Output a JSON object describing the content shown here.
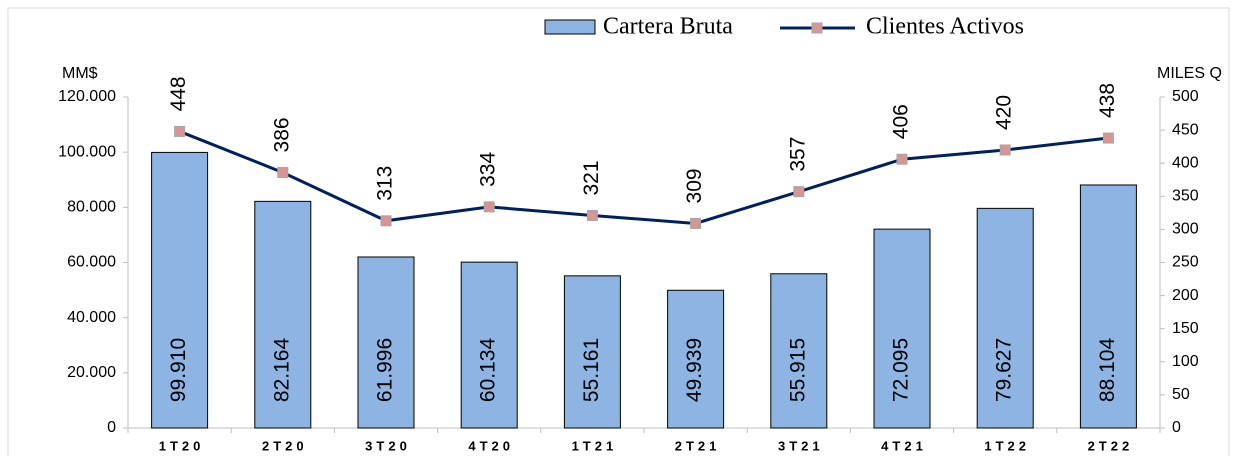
{
  "chart_data": {
    "type": "bar_line",
    "categories": [
      "1T20",
      "2T20",
      "3T20",
      "4T20",
      "1T21",
      "2T21",
      "3T21",
      "4T21",
      "1T22",
      "2T22"
    ],
    "series": [
      {
        "name": "Cartera Bruta",
        "type": "bar",
        "color": "#8db4e2",
        "values": [
          99910,
          82164,
          61996,
          60134,
          55161,
          49939,
          55915,
          72095,
          79627,
          88104
        ],
        "value_labels": [
          "99.910",
          "82.164",
          "61.996",
          "60.134",
          "55.161",
          "49.939",
          "55.915",
          "72.095",
          "79.627",
          "88.104"
        ]
      },
      {
        "name": "Clientes Activos",
        "type": "line",
        "axis": "y2",
        "color": "#002060",
        "marker_color": "#d99594",
        "values": [
          448,
          386,
          313,
          334,
          321,
          309,
          357,
          406,
          420,
          438
        ]
      }
    ],
    "ylabel": "MM$",
    "y2label": "MILES Q",
    "ylim": [
      0,
      120000
    ],
    "yticks": [
      0,
      {
        "value": 20000,
        "label": "20.000"
      },
      {
        "value": 40000,
        "label": "40.000"
      },
      {
        "value": 60000,
        "label": "60.000"
      },
      {
        "value": 80000,
        "label": "80.000"
      },
      {
        "value": 100000,
        "label": "100.000"
      },
      {
        "value": 120000,
        "label": "120.000"
      }
    ],
    "y2lim": [
      0,
      500
    ],
    "y2ticks": [
      0,
      50,
      100,
      150,
      200,
      250,
      300,
      350,
      400,
      450,
      500
    ],
    "legend": "top"
  }
}
